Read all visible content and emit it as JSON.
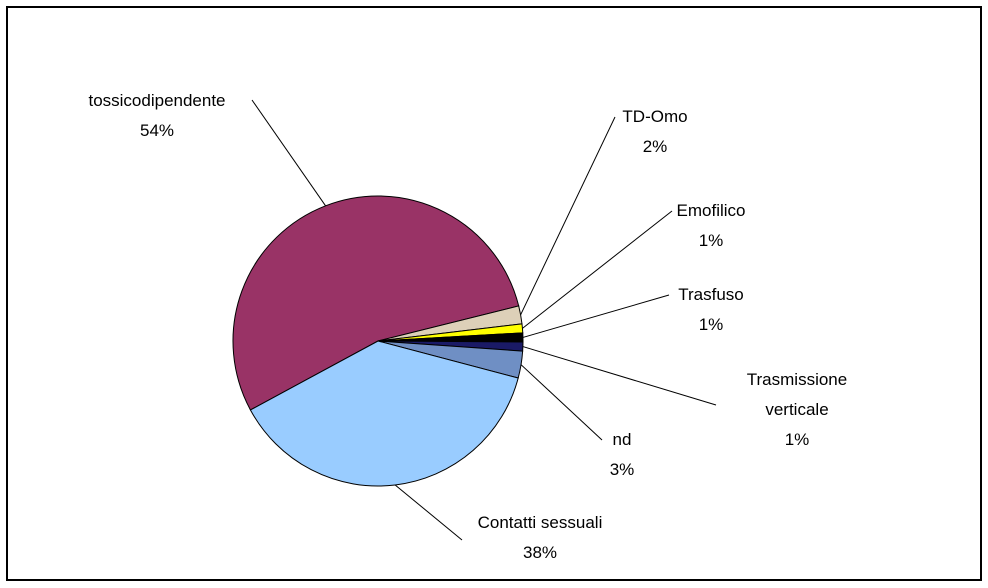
{
  "chart_data": {
    "type": "pie",
    "categories": [
      "tossicodipendente",
      "TD-Omo",
      "Emofilico",
      "Trasfuso",
      "Trasmissione verticale",
      "nd",
      "Contatti sessuali"
    ],
    "values": [
      54,
      2,
      1,
      1,
      1,
      3,
      38
    ],
    "value_labels": [
      "54%",
      "2%",
      "1%",
      "1%",
      "1%",
      "3%",
      "38%"
    ],
    "colors": [
      "#993366",
      "#ddd0b8",
      "#ffff00",
      "#000000",
      "#1a1a66",
      "#6f8fc4",
      "#99ccff"
    ]
  }
}
